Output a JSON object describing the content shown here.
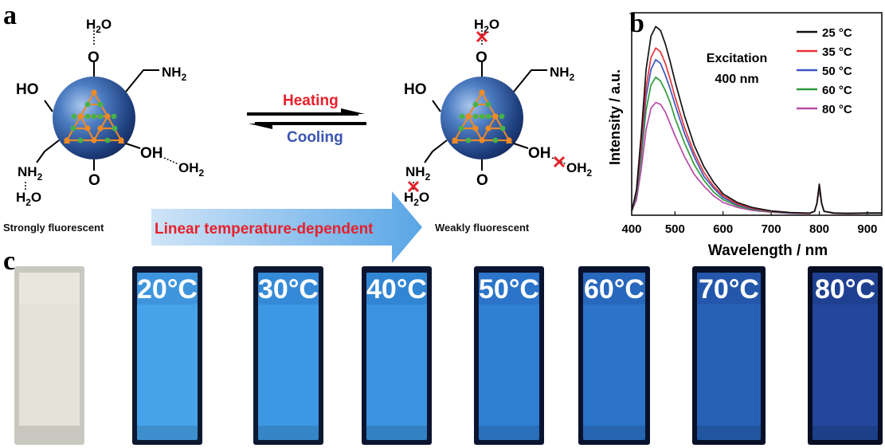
{
  "panel_a": {
    "letter": "a",
    "left_molecule": {
      "labels": {
        "top_h2o": "H2O",
        "ho": "HO",
        "nh2_top": "NH2",
        "nh2_bottom": "NH2",
        "h2o_bottom": "H2O",
        "oh": "OH",
        "oh2": "OH2",
        "o_top": "O",
        "o_bottom": "O"
      },
      "caption": "Strongly fluorescent"
    },
    "right_molecule": {
      "labels": {
        "top_h2o": "H2O",
        "ho": "HO",
        "nh2_top": "NH2",
        "nh2_bottom": "NH2",
        "h2o_bottom": "H2O",
        "oh": "OH",
        "oh2": "OH2",
        "o_top": "O",
        "o_bottom": "O"
      },
      "caption": "Weakly fluorescent"
    },
    "forward_label": "Heating",
    "reverse_label": "Cooling",
    "arrow_label": "Linear temperature-dependent",
    "colors": {
      "heating": "#e8202a",
      "cooling": "#3a55b4",
      "arrow_text": "#e8202a"
    }
  },
  "panel_b": {
    "letter": "b"
  },
  "chart_data": {
    "type": "line",
    "xlabel": "Wavelength / nm",
    "ylabel": "Intensity / a.u.",
    "annotation": [
      "Excitation",
      "400 nm"
    ],
    "xlim": [
      410,
      930
    ],
    "xticks": [
      400,
      500,
      600,
      700,
      800,
      900
    ],
    "ylim": [
      0,
      1.0
    ],
    "yticks_shown": false,
    "legend_position": "top-right",
    "series": [
      {
        "name": "25 °C",
        "color": "#111111",
        "peak": 0.97,
        "x": [
          410,
          420,
          430,
          440,
          450,
          460,
          470,
          480,
          490,
          500,
          520,
          540,
          560,
          580,
          600,
          630,
          660,
          700,
          740,
          780,
          790,
          795,
          800,
          805,
          810,
          830,
          860,
          900,
          930
        ],
        "y": [
          0.02,
          0.13,
          0.42,
          0.75,
          0.92,
          0.97,
          0.95,
          0.88,
          0.79,
          0.69,
          0.51,
          0.36,
          0.25,
          0.17,
          0.11,
          0.065,
          0.04,
          0.022,
          0.014,
          0.011,
          0.02,
          0.06,
          0.16,
          0.06,
          0.02,
          0.012,
          0.01,
          0.012,
          0.012
        ]
      },
      {
        "name": "35 °C",
        "color": "#e8333a",
        "peak": 0.86,
        "x": [
          410,
          420,
          430,
          440,
          450,
          460,
          470,
          480,
          490,
          500,
          520,
          540,
          560,
          580,
          600,
          630,
          660,
          700,
          740,
          780,
          790,
          795,
          800,
          805,
          810,
          830,
          860,
          900,
          930
        ],
        "y": [
          0.02,
          0.12,
          0.37,
          0.66,
          0.81,
          0.86,
          0.84,
          0.78,
          0.7,
          0.61,
          0.45,
          0.32,
          0.22,
          0.15,
          0.1,
          0.058,
          0.036,
          0.02,
          0.013,
          0.01,
          0.02,
          0.06,
          0.16,
          0.06,
          0.02,
          0.011,
          0.01,
          0.011,
          0.011
        ]
      },
      {
        "name": "50 °C",
        "color": "#3b56c4",
        "peak": 0.8,
        "x": [
          410,
          420,
          430,
          440,
          450,
          460,
          470,
          480,
          490,
          500,
          520,
          540,
          560,
          580,
          600,
          630,
          660,
          700,
          740,
          780,
          790,
          795,
          800,
          805,
          810,
          830,
          860,
          900,
          930
        ],
        "y": [
          0.02,
          0.11,
          0.34,
          0.61,
          0.75,
          0.8,
          0.78,
          0.72,
          0.65,
          0.57,
          0.42,
          0.3,
          0.2,
          0.14,
          0.09,
          0.054,
          0.033,
          0.019,
          0.012,
          0.01,
          0.02,
          0.06,
          0.15,
          0.06,
          0.02,
          0.011,
          0.01,
          0.011,
          0.011
        ]
      },
      {
        "name": "60 °C",
        "color": "#2e9a3a",
        "peak": 0.71,
        "x": [
          410,
          420,
          430,
          440,
          450,
          460,
          470,
          480,
          490,
          500,
          520,
          540,
          560,
          580,
          600,
          630,
          660,
          700,
          740,
          780,
          790,
          795,
          800,
          805,
          810,
          830,
          860,
          900,
          930
        ],
        "y": [
          0.02,
          0.1,
          0.3,
          0.54,
          0.67,
          0.71,
          0.69,
          0.64,
          0.58,
          0.5,
          0.37,
          0.26,
          0.18,
          0.12,
          0.08,
          0.048,
          0.03,
          0.017,
          0.011,
          0.009,
          0.02,
          0.06,
          0.14,
          0.06,
          0.02,
          0.01,
          0.009,
          0.01,
          0.01
        ]
      },
      {
        "name": "80 °C",
        "color": "#b84aa8",
        "peak": 0.58,
        "x": [
          410,
          420,
          430,
          440,
          450,
          460,
          470,
          480,
          490,
          500,
          520,
          540,
          560,
          580,
          600,
          630,
          660,
          700,
          740,
          780,
          790,
          795,
          800,
          805,
          810,
          830,
          860,
          900,
          930
        ],
        "y": [
          0.02,
          0.08,
          0.24,
          0.44,
          0.55,
          0.58,
          0.57,
          0.53,
          0.47,
          0.41,
          0.3,
          0.21,
          0.15,
          0.1,
          0.066,
          0.04,
          0.025,
          0.015,
          0.01,
          0.008,
          0.02,
          0.06,
          0.13,
          0.06,
          0.02,
          0.009,
          0.008,
          0.009,
          0.009
        ]
      }
    ]
  },
  "panel_c": {
    "letter": "c",
    "cuvettes": [
      {
        "label": "",
        "color_top": "#e9e8e0",
        "color_mid": "#e4e3da",
        "frame": "#c9c8c0"
      },
      {
        "label": "20°C",
        "color_top": "#3a8fd8",
        "color_mid": "#46a3ea",
        "frame": "#0c1830"
      },
      {
        "label": "30°C",
        "color_top": "#3285d2",
        "color_mid": "#3d98e3",
        "frame": "#0c1830"
      },
      {
        "label": "40°C",
        "color_top": "#2e80cf",
        "color_mid": "#3a93df",
        "frame": "#0b1530"
      },
      {
        "label": "50°C",
        "color_top": "#2a6fc4",
        "color_mid": "#2f7fd4",
        "frame": "#0a1430"
      },
      {
        "label": "60°C",
        "color_top": "#2764b8",
        "color_mid": "#2b74c9",
        "frame": "#09122c"
      },
      {
        "label": "70°C",
        "color_top": "#2453a6",
        "color_mid": "#2761b6",
        "frame": "#081028"
      },
      {
        "label": "80°C",
        "color_top": "#1e3d8c",
        "color_mid": "#22479c",
        "frame": "#070d22"
      }
    ]
  }
}
